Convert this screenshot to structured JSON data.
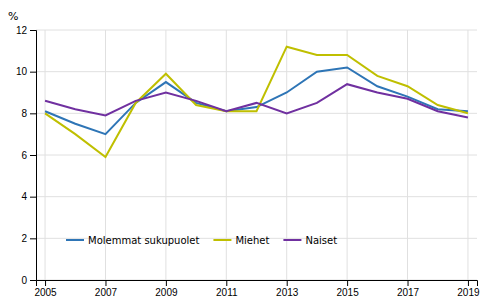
{
  "chart_data": {
    "type": "line",
    "ylabel": "%",
    "x": [
      2005,
      2006,
      2007,
      2008,
      2009,
      2010,
      2011,
      2012,
      2013,
      2014,
      2015,
      2016,
      2017,
      2018,
      2019
    ],
    "series": [
      {
        "name": "Molemmat sukupuolet",
        "color": "#2E75B6",
        "values": [
          8.1,
          7.5,
          7.0,
          8.5,
          9.5,
          8.5,
          8.1,
          8.3,
          9.0,
          10.0,
          10.2,
          9.3,
          8.8,
          8.2,
          8.1
        ]
      },
      {
        "name": "Miehet",
        "color": "#BFBF00",
        "values": [
          8.0,
          7.0,
          5.9,
          8.5,
          9.9,
          8.4,
          8.1,
          8.1,
          11.2,
          10.8,
          10.8,
          9.8,
          9.3,
          8.4,
          8.0
        ]
      },
      {
        "name": "Naiset",
        "color": "#7030A0",
        "values": [
          8.6,
          8.2,
          7.9,
          8.6,
          9.0,
          8.6,
          8.1,
          8.5,
          8.0,
          8.5,
          9.4,
          9.0,
          8.7,
          8.1,
          7.8
        ]
      }
    ],
    "xlim": [
      2004.7,
      2019.3
    ],
    "xticks": [
      2005,
      2007,
      2009,
      2011,
      2013,
      2015,
      2017,
      2019
    ],
    "ylim": [
      0,
      12
    ],
    "yticks": [
      0,
      2,
      4,
      6,
      8,
      10,
      12
    ],
    "grid": true,
    "legend": "lower left"
  }
}
